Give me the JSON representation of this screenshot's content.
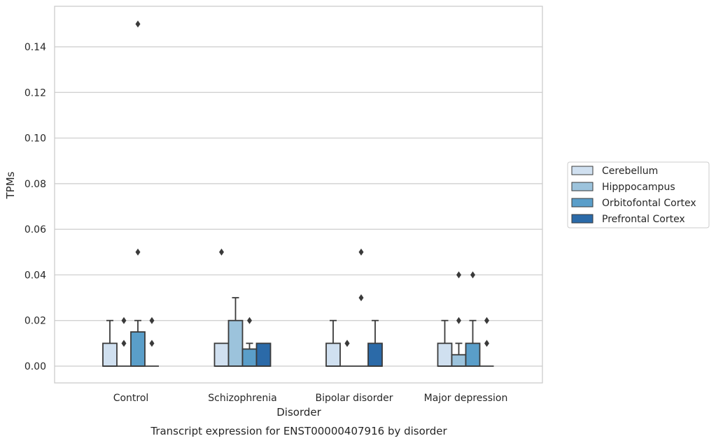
{
  "chart_data": {
    "type": "box",
    "caption": "Transcript expression for ENST00000407916 by disorder",
    "xlabel": "Disorder",
    "ylabel": "TPMs",
    "ylim": [
      -0.0075,
      0.157
    ],
    "yticks": [
      "0.00",
      "0.02",
      "0.04",
      "0.06",
      "0.08",
      "0.10",
      "0.12",
      "0.14"
    ],
    "grid": "horizontal",
    "legend_position": "right",
    "categories": [
      "Control",
      "Schizophrenia",
      "Bipolar disorder",
      "Major depression"
    ],
    "series": [
      {
        "name": "Cerebellum",
        "color": "#d0e0f0",
        "boxes": [
          {
            "q1": 0.0,
            "median": 0.0,
            "q3": 0.01,
            "whisker_low": 0.0,
            "whisker_high": 0.02,
            "outliers": []
          },
          {
            "q1": 0.0,
            "median": 0.0,
            "q3": 0.01,
            "whisker_low": 0.0,
            "whisker_high": 0.01,
            "outliers": [
              0.05
            ]
          },
          {
            "q1": 0.0,
            "median": 0.0,
            "q3": 0.01,
            "whisker_low": 0.0,
            "whisker_high": 0.02,
            "outliers": []
          },
          {
            "q1": 0.0,
            "median": 0.0,
            "q3": 0.01,
            "whisker_low": 0.0,
            "whisker_high": 0.02,
            "outliers": []
          }
        ]
      },
      {
        "name": "Hipppocampus",
        "color": "#9cc3dc",
        "boxes": [
          {
            "q1": 0.0,
            "median": 0.0,
            "q3": 0.0,
            "whisker_low": 0.0,
            "whisker_high": 0.0,
            "outliers": [
              0.01,
              0.02
            ]
          },
          {
            "q1": 0.0,
            "median": 0.0,
            "q3": 0.02,
            "whisker_low": 0.0,
            "whisker_high": 0.03,
            "outliers": []
          },
          {
            "q1": 0.0,
            "median": 0.0,
            "q3": 0.0,
            "whisker_low": 0.0,
            "whisker_high": 0.0,
            "outliers": [
              0.01,
              0.01
            ]
          },
          {
            "q1": 0.0,
            "median": 0.0,
            "q3": 0.005,
            "whisker_low": 0.0,
            "whisker_high": 0.01,
            "outliers": [
              0.02,
              0.04
            ]
          }
        ]
      },
      {
        "name": "Orbitofontal Cortex",
        "color": "#5a9ec9",
        "boxes": [
          {
            "q1": 0.0,
            "median": 0.0,
            "q3": 0.015,
            "whisker_low": 0.0,
            "whisker_high": 0.02,
            "outliers": [
              0.05,
              0.15
            ]
          },
          {
            "q1": 0.0,
            "median": 0.0,
            "q3": 0.0075,
            "whisker_low": 0.0,
            "whisker_high": 0.01,
            "outliers": [
              0.02
            ]
          },
          {
            "q1": 0.0,
            "median": 0.0,
            "q3": 0.0,
            "whisker_low": 0.0,
            "whisker_high": 0.0,
            "outliers": [
              0.03,
              0.05
            ]
          },
          {
            "q1": 0.0,
            "median": 0.0,
            "q3": 0.01,
            "whisker_low": 0.0,
            "whisker_high": 0.02,
            "outliers": [
              0.04
            ]
          }
        ]
      },
      {
        "name": "Prefrontal Cortex",
        "color": "#2b6aa8",
        "boxes": [
          {
            "q1": 0.0,
            "median": 0.0,
            "q3": 0.0,
            "whisker_low": 0.0,
            "whisker_high": 0.0,
            "outliers": [
              0.01,
              0.02
            ]
          },
          {
            "q1": 0.0,
            "median": 0.0,
            "q3": 0.01,
            "whisker_low": 0.0,
            "whisker_high": 0.01,
            "outliers": []
          },
          {
            "q1": 0.0,
            "median": 0.0,
            "q3": 0.01,
            "whisker_low": 0.0,
            "whisker_high": 0.02,
            "outliers": []
          },
          {
            "q1": 0.0,
            "median": 0.0,
            "q3": 0.0,
            "whisker_low": 0.0,
            "whisker_high": 0.0,
            "outliers": [
              0.01,
              0.02
            ]
          }
        ]
      }
    ]
  }
}
